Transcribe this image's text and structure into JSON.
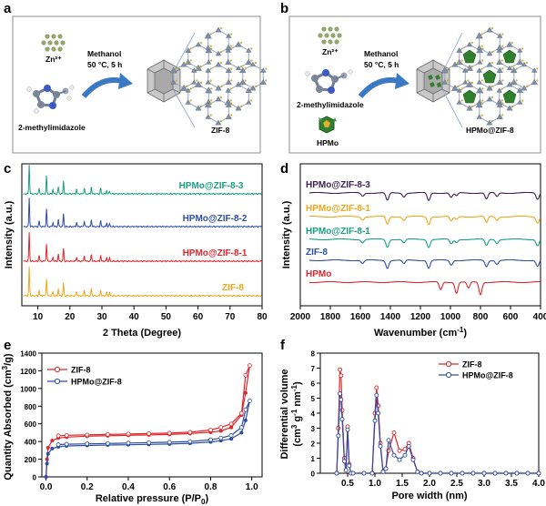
{
  "figure": {
    "panel_labels": [
      "a",
      "b",
      "c",
      "d",
      "e",
      "f"
    ],
    "colors": {
      "red": "#e0252b",
      "blue": "#2d4ea3",
      "teal": "#1a9e82",
      "orange": "#f2a71b",
      "purple": "#3c1f4f",
      "zn": "#93a66b",
      "mof_green": "#2f7f2f"
    }
  },
  "panel_a": {
    "zn_label": "Zn²⁺",
    "ligand_label": "2-methylimidazole",
    "conditions_line1": "Methanol",
    "conditions_line2": "50 °C, 5 h",
    "product_label": "ZIF-8"
  },
  "panel_b": {
    "zn_label": "Zn²⁺",
    "ligand_label": "2-methylimidazole",
    "hpmo_label": "HPMo",
    "conditions_line1": "Methanol",
    "conditions_line2": "50 °C, 5 h",
    "product_label": "HPMo@ZIF-8"
  },
  "chart_data": [
    {
      "panel": "c",
      "type": "line",
      "title": "",
      "xlabel": "2 Theta (Degree)",
      "ylabel": "Intensity (a.u.)",
      "xlim": [
        5,
        80
      ],
      "xticks": [
        10,
        20,
        30,
        40,
        50,
        60,
        70,
        80
      ],
      "y_ticks_shown": false,
      "series": [
        {
          "name": "ZIF-8",
          "color": "#f2a71b",
          "offset": 0,
          "peaks": [
            [
              7.3,
              10.0
            ],
            [
              10.4,
              2.0
            ],
            [
              12.7,
              6.0
            ],
            [
              14.7,
              1.5
            ],
            [
              16.4,
              2.5
            ],
            [
              18.0,
              4.5
            ],
            [
              22.1,
              1.5
            ],
            [
              24.5,
              2.0
            ],
            [
              26.7,
              2.5
            ],
            [
              29.6,
              2.0
            ],
            [
              31.5,
              1.2
            ],
            [
              32.4,
              1.0
            ]
          ]
        },
        {
          "name": "HPMo@ZIF-8-1",
          "color": "#e0252b",
          "offset": 1,
          "peaks": [
            [
              7.3,
              10.0
            ],
            [
              10.4,
              2.0
            ],
            [
              12.7,
              6.0
            ],
            [
              14.7,
              1.5
            ],
            [
              16.4,
              2.5
            ],
            [
              18.0,
              4.5
            ],
            [
              22.1,
              1.5
            ],
            [
              24.5,
              2.0
            ],
            [
              26.7,
              2.5
            ],
            [
              29.6,
              2.0
            ],
            [
              31.5,
              1.2
            ],
            [
              32.4,
              1.0
            ]
          ]
        },
        {
          "name": "HPMo@ZIF-8-2",
          "color": "#2d4ea3",
          "offset": 2,
          "peaks": [
            [
              7.3,
              10.0
            ],
            [
              10.4,
              2.0
            ],
            [
              12.7,
              6.0
            ],
            [
              14.7,
              1.5
            ],
            [
              16.4,
              2.5
            ],
            [
              18.0,
              4.5
            ],
            [
              22.1,
              1.5
            ],
            [
              24.5,
              2.0
            ],
            [
              26.7,
              2.5
            ],
            [
              29.6,
              2.0
            ],
            [
              31.5,
              1.2
            ],
            [
              32.4,
              1.0
            ]
          ]
        },
        {
          "name": "HPMo@ZIF-8-3",
          "color": "#1a9e82",
          "offset": 3,
          "peaks": [
            [
              7.3,
              10.0
            ],
            [
              10.4,
              2.0
            ],
            [
              12.7,
              6.0
            ],
            [
              14.7,
              1.5
            ],
            [
              16.4,
              2.5
            ],
            [
              18.0,
              4.5
            ],
            [
              22.1,
              1.5
            ],
            [
              24.5,
              2.0
            ],
            [
              26.7,
              2.5
            ],
            [
              29.6,
              2.0
            ],
            [
              31.5,
              1.2
            ],
            [
              32.4,
              1.0
            ]
          ]
        }
      ]
    },
    {
      "panel": "d",
      "type": "line",
      "title": "",
      "xlabel": "Wavenumber (cm⁻¹)",
      "ylabel": "Intensity (a.u.)",
      "xlim": [
        2000,
        400
      ],
      "xticks": [
        2000,
        1800,
        1600,
        1400,
        1200,
        1000,
        800,
        600,
        400
      ],
      "y_ticks_shown": false,
      "series": [
        {
          "name": "HPMo",
          "color": "#e0252b",
          "offset": 0,
          "bands": [
            [
              1065,
              2.5
            ],
            [
              960,
              3.5
            ],
            [
              880,
              2.0
            ],
            [
              800,
              4.0
            ]
          ]
        },
        {
          "name": "ZIF-8",
          "color": "#2d4ea3",
          "offset": 1,
          "bands": [
            [
              1585,
              1.0
            ],
            [
              1420,
              2.5
            ],
            [
              1310,
              1.2
            ],
            [
              1145,
              2.5
            ],
            [
              995,
              1.5
            ],
            [
              760,
              2.0
            ],
            [
              690,
              1.2
            ],
            [
              420,
              2.0
            ]
          ]
        },
        {
          "name": "HPMo@ZIF-8-1",
          "color": "#1a9e82",
          "offset": 2,
          "bands": [
            [
              1585,
              1.0
            ],
            [
              1420,
              2.5
            ],
            [
              1310,
              1.2
            ],
            [
              1145,
              2.5
            ],
            [
              995,
              1.5
            ],
            [
              960,
              1.0
            ],
            [
              760,
              2.0
            ],
            [
              690,
              1.2
            ],
            [
              420,
              2.0
            ]
          ]
        },
        {
          "name": "HPMo@ZIF-8-1",
          "color": "#f2a71b",
          "offset": 3,
          "bands": [
            [
              1585,
              1.0
            ],
            [
              1420,
              2.5
            ],
            [
              1310,
              1.2
            ],
            [
              1145,
              2.5
            ],
            [
              995,
              1.5
            ],
            [
              960,
              1.0
            ],
            [
              760,
              2.0
            ],
            [
              690,
              1.2
            ],
            [
              420,
              2.0
            ]
          ]
        },
        {
          "name": "HPMo@ZIF-8-3",
          "color": "#3c1f4f",
          "offset": 4,
          "bands": [
            [
              1585,
              1.0
            ],
            [
              1420,
              2.5
            ],
            [
              1310,
              1.2
            ],
            [
              1145,
              2.5
            ],
            [
              995,
              1.5
            ],
            [
              960,
              1.0
            ],
            [
              760,
              2.0
            ],
            [
              690,
              1.2
            ],
            [
              420,
              2.0
            ]
          ]
        }
      ]
    },
    {
      "panel": "e",
      "type": "line",
      "title": "",
      "xlabel": "Relative pressure (P/P0)",
      "ylabel": "Quantity Absorbed (cm³/g)",
      "xlim": [
        -0.02,
        1.05
      ],
      "ylim": [
        0,
        1400
      ],
      "xticks": [
        0.0,
        0.2,
        0.4,
        0.6,
        0.8,
        1.0
      ],
      "yticks": [
        0,
        200,
        400,
        600,
        800,
        1000,
        1200,
        1400
      ],
      "legend": "top-left",
      "series": [
        {
          "name": "ZIF-8",
          "color": "#e0252b",
          "adsorption": [
            [
              0.0,
              0
            ],
            [
              0.005,
              200
            ],
            [
              0.01,
              330
            ],
            [
              0.03,
              410
            ],
            [
              0.06,
              440
            ],
            [
              0.1,
              450
            ],
            [
              0.2,
              460
            ],
            [
              0.3,
              465
            ],
            [
              0.4,
              470
            ],
            [
              0.5,
              475
            ],
            [
              0.6,
              480
            ],
            [
              0.7,
              490
            ],
            [
              0.8,
              505
            ],
            [
              0.85,
              520
            ],
            [
              0.9,
              560
            ],
            [
              0.95,
              700
            ],
            [
              0.97,
              950
            ],
            [
              0.99,
              1260
            ]
          ],
          "desorption": [
            [
              0.99,
              1260
            ],
            [
              0.97,
              1150
            ],
            [
              0.95,
              720
            ],
            [
              0.9,
              600
            ],
            [
              0.85,
              560
            ],
            [
              0.8,
              530
            ],
            [
              0.7,
              505
            ],
            [
              0.6,
              495
            ],
            [
              0.5,
              490
            ],
            [
              0.4,
              485
            ],
            [
              0.3,
              480
            ],
            [
              0.2,
              475
            ],
            [
              0.1,
              470
            ],
            [
              0.06,
              465
            ]
          ]
        },
        {
          "name": "HPMo@ZIF-8",
          "color": "#2d4ea3",
          "adsorption": [
            [
              0.0,
              0
            ],
            [
              0.005,
              150
            ],
            [
              0.01,
              260
            ],
            [
              0.03,
              320
            ],
            [
              0.06,
              340
            ],
            [
              0.1,
              350
            ],
            [
              0.2,
              355
            ],
            [
              0.3,
              360
            ],
            [
              0.4,
              363
            ],
            [
              0.5,
              367
            ],
            [
              0.6,
              372
            ],
            [
              0.7,
              380
            ],
            [
              0.8,
              395
            ],
            [
              0.85,
              410
            ],
            [
              0.9,
              430
            ],
            [
              0.95,
              500
            ],
            [
              0.97,
              640
            ],
            [
              0.99,
              860
            ]
          ],
          "desorption": [
            [
              0.99,
              860
            ],
            [
              0.97,
              760
            ],
            [
              0.95,
              560
            ],
            [
              0.9,
              470
            ],
            [
              0.85,
              440
            ],
            [
              0.8,
              420
            ],
            [
              0.7,
              400
            ],
            [
              0.6,
              392
            ],
            [
              0.5,
              387
            ],
            [
              0.4,
              383
            ],
            [
              0.3,
              378
            ],
            [
              0.2,
              374
            ],
            [
              0.1,
              370
            ],
            [
              0.06,
              365
            ]
          ]
        }
      ]
    },
    {
      "panel": "f",
      "type": "line",
      "title": "",
      "xlabel": "Pore width (nm)",
      "ylabel": "Differential volume (cm³ g⁻¹ nm⁻¹)",
      "xlim": [
        0,
        4.0
      ],
      "ylim": [
        0,
        8
      ],
      "xticks": [
        0.5,
        1.0,
        1.5,
        2.0,
        2.5,
        3.0,
        3.5,
        4.0
      ],
      "yticks": [
        0,
        1,
        2,
        3,
        4,
        5,
        6,
        7,
        8
      ],
      "legend": "top-right",
      "series": [
        {
          "name": "ZIF-8",
          "color": "#e0252b",
          "points": [
            [
              0.3,
              0.0
            ],
            [
              0.33,
              3.0
            ],
            [
              0.36,
              6.9
            ],
            [
              0.38,
              6.5
            ],
            [
              0.4,
              4.2
            ],
            [
              0.44,
              1.0
            ],
            [
              0.47,
              0.2
            ],
            [
              0.5,
              3.1
            ],
            [
              0.53,
              0.6
            ],
            [
              0.56,
              0.0
            ],
            [
              0.6,
              0.0
            ],
            [
              0.8,
              0.0
            ],
            [
              0.95,
              0.0
            ],
            [
              1.0,
              4.0
            ],
            [
              1.03,
              5.7
            ],
            [
              1.06,
              4.5
            ],
            [
              1.1,
              2.0
            ],
            [
              1.15,
              0.1
            ],
            [
              1.2,
              0.3
            ],
            [
              1.25,
              1.5
            ],
            [
              1.35,
              2.7
            ],
            [
              1.45,
              1.5
            ],
            [
              1.55,
              1.6
            ],
            [
              1.62,
              2.0
            ],
            [
              1.7,
              1.0
            ],
            [
              1.78,
              0.1
            ],
            [
              1.85,
              0.0
            ],
            [
              2.0,
              0.0
            ],
            [
              2.2,
              0.0
            ],
            [
              2.4,
              0.0
            ],
            [
              2.6,
              0.0
            ],
            [
              2.8,
              0.0
            ],
            [
              3.0,
              0.0
            ],
            [
              3.2,
              0.0
            ],
            [
              3.4,
              0.0
            ],
            [
              3.6,
              0.0
            ],
            [
              3.8,
              0.0
            ],
            [
              4.0,
              0.0
            ]
          ]
        },
        {
          "name": "HPMo@ZIF-8",
          "color": "#2d4ea3",
          "points": [
            [
              0.3,
              0.0
            ],
            [
              0.33,
              2.5
            ],
            [
              0.36,
              5.3
            ],
            [
              0.38,
              4.9
            ],
            [
              0.4,
              3.6
            ],
            [
              0.44,
              0.8
            ],
            [
              0.47,
              0.2
            ],
            [
              0.5,
              2.9
            ],
            [
              0.53,
              0.5
            ],
            [
              0.56,
              0.0
            ],
            [
              0.6,
              0.0
            ],
            [
              0.8,
              0.0
            ],
            [
              0.95,
              0.0
            ],
            [
              1.0,
              3.5
            ],
            [
              1.03,
              5.2
            ],
            [
              1.06,
              4.0
            ],
            [
              1.1,
              1.8
            ],
            [
              1.15,
              0.1
            ],
            [
              1.2,
              0.3
            ],
            [
              1.25,
              2.2
            ],
            [
              1.35,
              1.2
            ],
            [
              1.45,
              0.9
            ],
            [
              1.55,
              1.2
            ],
            [
              1.62,
              1.8
            ],
            [
              1.7,
              0.9
            ],
            [
              1.78,
              0.1
            ],
            [
              1.85,
              0.0
            ],
            [
              2.0,
              0.0
            ],
            [
              2.2,
              0.0
            ],
            [
              2.4,
              0.0
            ],
            [
              2.6,
              0.0
            ],
            [
              2.8,
              0.0
            ],
            [
              3.0,
              0.0
            ],
            [
              3.2,
              0.0
            ],
            [
              3.4,
              0.0
            ],
            [
              3.6,
              0.0
            ],
            [
              3.8,
              0.0
            ],
            [
              4.0,
              0.0
            ]
          ]
        }
      ]
    }
  ]
}
